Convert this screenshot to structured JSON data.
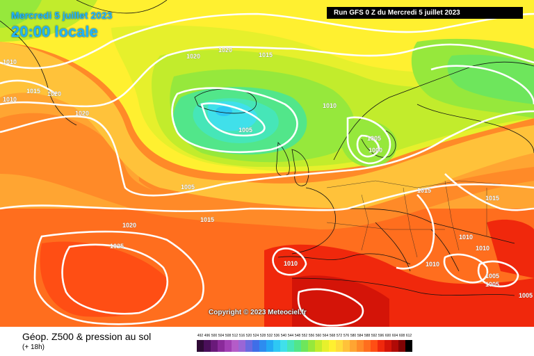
{
  "header": {
    "date": "Mercredi 5 juillet 2023",
    "time": "20:00 locale",
    "run": "Run GFS 0 Z du Mercredi 5 juillet 2023"
  },
  "map": {
    "isobar_labels": [
      "1010",
      "1010",
      "1015",
      "1020",
      "1020",
      "1020",
      "1020",
      "1015",
      "1010",
      "1005",
      "1005",
      "1000",
      "1005",
      "1015",
      "1015",
      "1020",
      "1025",
      "1015",
      "1010",
      "1010",
      "1010",
      "1005",
      "1005",
      "1010",
      "1005"
    ],
    "copyright": "Copyright © 2023 Meteociel.fr"
  },
  "legend": {
    "title": "Géop. Z500 & pression au sol",
    "subtitle": "(+ 18h)",
    "scale": [
      {
        "value": "492",
        "color": "#2e0a35"
      },
      {
        "value": "496",
        "color": "#4a0f5a"
      },
      {
        "value": "500",
        "color": "#6a1a7a"
      },
      {
        "value": "504",
        "color": "#8a2a9a"
      },
      {
        "value": "508",
        "color": "#a23fb4"
      },
      {
        "value": "512",
        "color": "#b45cc8"
      },
      {
        "value": "516",
        "color": "#9a66d6"
      },
      {
        "value": "520",
        "color": "#6a6ae0"
      },
      {
        "value": "524",
        "color": "#3f6ee8"
      },
      {
        "value": "528",
        "color": "#2d8cf0"
      },
      {
        "value": "532",
        "color": "#23aaf4"
      },
      {
        "value": "536",
        "color": "#2ec8f4"
      },
      {
        "value": "540",
        "color": "#40e0ea"
      },
      {
        "value": "544",
        "color": "#46e6b8"
      },
      {
        "value": "548",
        "color": "#52e68a"
      },
      {
        "value": "552",
        "color": "#6ee65c"
      },
      {
        "value": "556",
        "color": "#96e83c"
      },
      {
        "value": "560",
        "color": "#c2ec2c"
      },
      {
        "value": "564",
        "color": "#e6f02c"
      },
      {
        "value": "568",
        "color": "#fff030"
      },
      {
        "value": "572",
        "color": "#ffdc3a"
      },
      {
        "value": "576",
        "color": "#ffc23a"
      },
      {
        "value": "580",
        "color": "#ffa532"
      },
      {
        "value": "584",
        "color": "#ff8a28"
      },
      {
        "value": "588",
        "color": "#ff6e1e"
      },
      {
        "value": "592",
        "color": "#ff4e14"
      },
      {
        "value": "596",
        "color": "#f0280c"
      },
      {
        "value": "600",
        "color": "#d41408"
      },
      {
        "value": "604",
        "color": "#b00a06"
      },
      {
        "value": "608",
        "color": "#800404"
      },
      {
        "value": "612",
        "color": "#000000"
      }
    ]
  }
}
